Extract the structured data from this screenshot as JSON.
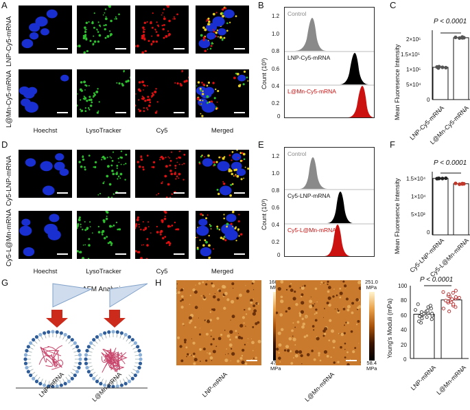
{
  "panels": {
    "A": "A",
    "B": "B",
    "C": "C",
    "D": "D",
    "E": "E",
    "F": "F",
    "G": "G",
    "H": "H"
  },
  "microscopy": {
    "A_rows": [
      "LNP-Cy5-mRNA",
      "L@Mn-Cy5-mRNA"
    ],
    "D_rows": [
      "Cy5-LNP-mRNA",
      "Cy5-L@Mn-mRNA"
    ],
    "columns": [
      "Hoechst",
      "LysoTracker",
      "Cy5",
      "Merged"
    ]
  },
  "flow_B": {
    "ylabel": "Count (10³)",
    "ticks": [
      "1.2",
      "1.0",
      "0.8",
      "0.6",
      "0.4",
      "0.2",
      "0"
    ],
    "lanes": [
      "Control",
      "LNP-Cy5-mRNA",
      "L@Mn-Cy5-mRNA"
    ]
  },
  "flow_E": {
    "ylabel": "Count (10³)",
    "ticks": [
      "1.2",
      "1.0",
      "0.8",
      "0.6",
      "0.4",
      "0.2",
      "0"
    ],
    "lanes": [
      "Control",
      "Cy5-LNP-mRNA",
      "Cy5-L@Mn-mRNA"
    ]
  },
  "bar_C": {
    "ylabel": "Mean Fluoresence Intensity",
    "ticks": [
      "2×10⁵",
      "1.5×10⁵",
      "1×10⁵",
      "5×10⁴",
      "0"
    ],
    "sig": "P < 0.0001"
  },
  "bar_F": {
    "ylabel": "Mean Fluoresence Intensity",
    "ticks": [
      "1.5×10⁴",
      "1×10⁴",
      "5×10³",
      "0"
    ],
    "sig": "P < 0.0001"
  },
  "schematic_G": {
    "title": "AFM Analysis",
    "left_label": "LNP-mRNA",
    "right_label": "L@Mn-mRNA"
  },
  "afm_H": {
    "left": {
      "max": "166.4",
      "max_unit": "MPa",
      "min": "47.8",
      "min_unit": "MPa",
      "label": "LNP-mRNA"
    },
    "right": {
      "max": "251.0",
      "max_unit": "MPa",
      "min": "58.4",
      "min_unit": "MPa",
      "label": "L@Mn-mRNA"
    }
  },
  "chart_data": [
    {
      "type": "bar",
      "panel": "C",
      "ylabel": "Mean Fluoresence Intensity",
      "categories": [
        "LNP-Cy5-mRNA",
        "L@Mn-Cy5-mRNA"
      ],
      "values": [
        95000,
        182000
      ],
      "points": [
        [
          93000,
          96000,
          94000,
          97000,
          95000
        ],
        [
          181000,
          183000,
          182000,
          184000,
          181500
        ]
      ],
      "ylim": [
        0,
        200000
      ],
      "annotation": "P < 0.0001",
      "colors": {
        "points": "#555555"
      }
    },
    {
      "type": "bar",
      "panel": "F",
      "ylabel": "Mean Fluoresence Intensity",
      "categories": [
        "Cy5-LNP-mRNA",
        "Cy5-L@Mn-mRNA"
      ],
      "values": [
        13700,
        12400
      ],
      "points": [
        [
          13700,
          13650,
          13750,
          13700,
          13680
        ],
        [
          12300,
          12500,
          12400,
          12350,
          12450
        ]
      ],
      "ylim": [
        0,
        15000
      ],
      "annotation": "P < 0.0001",
      "colors": {
        "points": [
          "#222222",
          "#c0392b"
        ]
      }
    },
    {
      "type": "bar",
      "panel": "H",
      "ylabel": "Young's Moduli (mPa)",
      "categories": [
        "LNP-mRNA",
        "L@Mn-mRNA"
      ],
      "values": [
        62,
        82
      ],
      "points": [
        [
          50,
          52,
          55,
          56,
          58,
          59,
          60,
          61,
          62,
          63,
          63,
          64,
          65,
          66,
          67,
          68,
          70,
          72,
          74,
          76
        ],
        [
          66,
          70,
          72,
          74,
          76,
          78,
          79,
          80,
          81,
          82,
          83,
          84,
          85,
          86,
          87,
          88,
          90,
          92,
          93,
          95
        ]
      ],
      "ylim": [
        0,
        100
      ],
      "yticks": [
        "100",
        "80",
        "60",
        "40",
        "20",
        "0"
      ],
      "annotation": "P < 0.0001",
      "colors": {
        "points": [
          "#333333",
          "#b22222"
        ]
      }
    }
  ],
  "colors": {
    "red": "#cc1111",
    "control": "#888888",
    "nucleus": "#1a2fd0",
    "lyso": "#2ec02e",
    "cy5": "#e01010",
    "merge": "#e8d020"
  }
}
